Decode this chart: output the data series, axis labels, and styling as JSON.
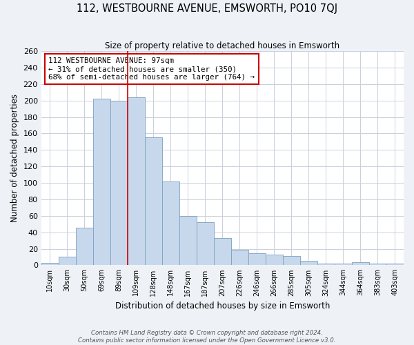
{
  "title": "112, WESTBOURNE AVENUE, EMSWORTH, PO10 7QJ",
  "subtitle": "Size of property relative to detached houses in Emsworth",
  "xlabel": "Distribution of detached houses by size in Emsworth",
  "ylabel": "Number of detached properties",
  "categories": [
    "10sqm",
    "30sqm",
    "50sqm",
    "69sqm",
    "89sqm",
    "109sqm",
    "128sqm",
    "148sqm",
    "167sqm",
    "187sqm",
    "207sqm",
    "226sqm",
    "246sqm",
    "266sqm",
    "285sqm",
    "305sqm",
    "324sqm",
    "344sqm",
    "364sqm",
    "383sqm",
    "403sqm"
  ],
  "values": [
    3,
    10,
    46,
    202,
    200,
    204,
    155,
    102,
    60,
    52,
    33,
    19,
    15,
    13,
    11,
    5,
    2,
    2,
    4,
    2,
    2
  ],
  "bar_color": "#c8d8ec",
  "bar_edge_color": "#7aa0c0",
  "vline_color": "#cc0000",
  "vline_pos": 4.5,
  "annotation_text": "112 WESTBOURNE AVENUE: 97sqm\n← 31% of detached houses are smaller (350)\n68% of semi-detached houses are larger (764) →",
  "annotation_box_color": "#ffffff",
  "annotation_box_edge": "#cc0000",
  "ylim": [
    0,
    260
  ],
  "yticks": [
    0,
    20,
    40,
    60,
    80,
    100,
    120,
    140,
    160,
    180,
    200,
    220,
    240,
    260
  ],
  "footer_line1": "Contains HM Land Registry data © Crown copyright and database right 2024.",
  "footer_line2": "Contains public sector information licensed under the Open Government Licence v3.0.",
  "bg_color": "#eef2f7",
  "plot_bg_color": "#ffffff",
  "grid_color": "#c8d0dc"
}
